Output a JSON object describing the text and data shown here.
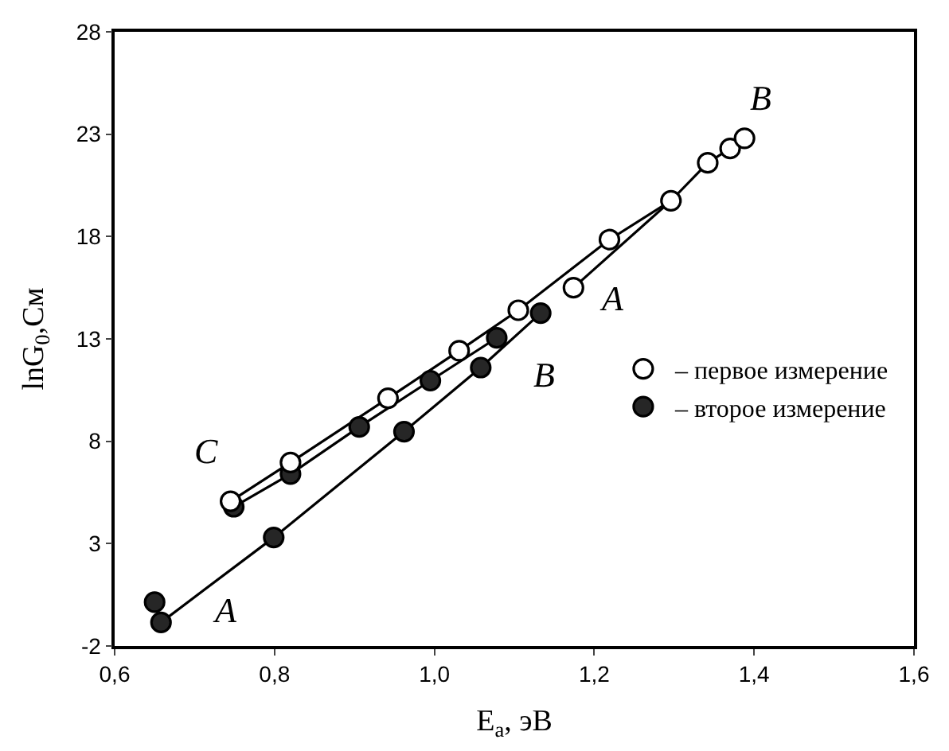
{
  "chart_data": {
    "type": "scatter",
    "xlabel": "E$_{а}$, эВ",
    "ylabel": "lnG$_{0}$,См",
    "xlim": [
      0.6,
      1.6
    ],
    "ylim": [
      -2,
      28
    ],
    "xticks": [
      {
        "value": 0.6,
        "label": "0,6"
      },
      {
        "value": 0.8,
        "label": "0,8"
      },
      {
        "value": 1.0,
        "label": "1,0"
      },
      {
        "value": 1.2,
        "label": "1,2"
      },
      {
        "value": 1.4,
        "label": "1,4"
      },
      {
        "value": 1.6,
        "label": "1,6"
      }
    ],
    "yticks": [
      -2,
      3,
      8,
      13,
      18,
      23,
      28
    ],
    "legend": "right",
    "marker": "circle",
    "series": [
      {
        "type": "line",
        "marker": "none",
        "color": "#000000",
        "x": [
          0.745,
          0.82,
          0.942,
          1.031,
          1.105,
          1.219,
          1.296,
          1.342,
          1.37,
          1.388
        ],
        "values": [
          5.07,
          6.96,
          10.1,
          12.42,
          14.4,
          17.85,
          19.75,
          21.6,
          22.3,
          22.8
        ]
      },
      {
        "type": "line",
        "marker": "none",
        "color": "#000000",
        "x": [
          1.174,
          1.296
        ],
        "values": [
          15.5,
          19.75
        ]
      },
      {
        "type": "line",
        "marker": "none",
        "color": "#000000",
        "x": [
          0.658,
          0.799,
          0.962,
          1.058,
          1.133
        ],
        "values": [
          -0.85,
          3.3,
          8.47,
          11.6,
          14.26
        ]
      },
      {
        "type": "line",
        "marker": "none",
        "color": "#000000",
        "x": [
          0.749,
          0.82,
          0.906,
          0.995,
          1.078
        ],
        "values": [
          4.8,
          6.4,
          8.7,
          10.96,
          13.05
        ]
      },
      {
        "name": "– второе измерение",
        "color": "#262626",
        "x": [
          0.65,
          0.658,
          0.749,
          0.799,
          0.82,
          0.906,
          0.962,
          0.995,
          1.058,
          1.078,
          1.133
        ],
        "values": [
          0.14,
          -0.85,
          4.8,
          3.3,
          6.4,
          8.7,
          8.47,
          10.96,
          11.6,
          13.05,
          14.26
        ]
      },
      {
        "name": "– первое измерение",
        "color": "#ffffff",
        "x": [
          0.745,
          0.82,
          0.942,
          1.031,
          1.105,
          1.174,
          1.219,
          1.296,
          1.342,
          1.37,
          1.388
        ],
        "values": [
          5.07,
          6.96,
          10.1,
          12.42,
          14.4,
          15.5,
          17.85,
          19.75,
          21.6,
          22.3,
          22.8
        ]
      }
    ],
    "annotations": [
      "B",
      "A",
      "B",
      "C",
      "A"
    ]
  }
}
